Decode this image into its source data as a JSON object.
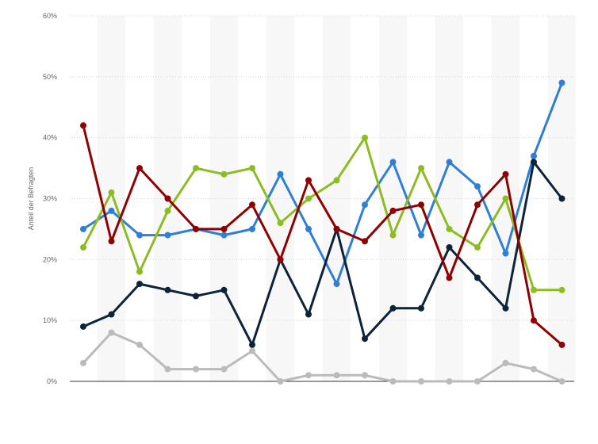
{
  "chart_data": {
    "type": "line",
    "ylabel": "Anteil der Befragten",
    "ylim": [
      0,
      60
    ],
    "y_ticks": [
      {
        "value": 0,
        "label": "0%"
      },
      {
        "value": 10,
        "label": "10%"
      },
      {
        "value": 20,
        "label": "20%"
      },
      {
        "value": 30,
        "label": "30%"
      },
      {
        "value": 40,
        "label": "40%"
      },
      {
        "value": 50,
        "label": "50%"
      },
      {
        "value": 60,
        "label": "60%"
      }
    ],
    "point_count": 18,
    "grid": true,
    "legend": "none",
    "series": [
      {
        "color": "#2f7ed8",
        "values": [
          25,
          28,
          24,
          24,
          25,
          24,
          25,
          34,
          25,
          16,
          29,
          36,
          24,
          36,
          32,
          21,
          37,
          49
        ]
      },
      {
        "color": "#0d233a",
        "values": [
          9,
          11,
          16,
          15,
          14,
          15,
          6,
          20,
          11,
          25,
          7,
          12,
          12,
          22,
          17,
          12,
          36,
          30
        ]
      },
      {
        "color": "#8bbc21",
        "values": [
          22,
          31,
          18,
          28,
          35,
          34,
          35,
          26,
          30,
          33,
          40,
          24,
          35,
          25,
          22,
          30,
          15,
          15
        ]
      },
      {
        "color": "#910000",
        "values": [
          42,
          23,
          35,
          30,
          25,
          25,
          29,
          20,
          33,
          25,
          23,
          28,
          29,
          17,
          29,
          34,
          10,
          6
        ]
      },
      {
        "color": "#bbbbbb",
        "values": [
          3,
          8,
          6,
          2,
          2,
          2,
          5,
          0,
          1,
          1,
          1,
          0,
          0,
          0,
          0,
          3,
          2,
          0
        ]
      }
    ]
  }
}
